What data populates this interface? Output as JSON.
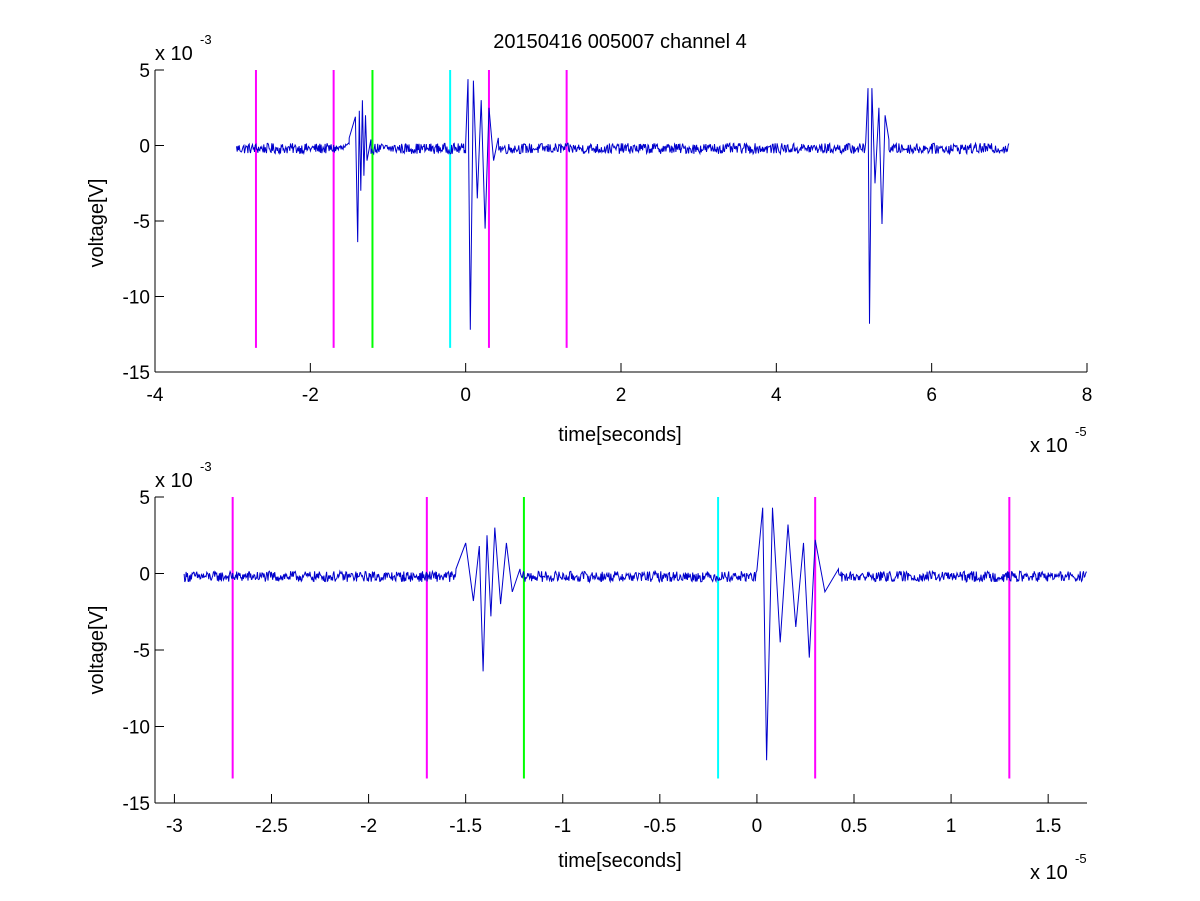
{
  "chart_data": [
    {
      "type": "line",
      "title": "20150416 005007 channel 4",
      "xlabel": "time[seconds]",
      "ylabel": "voltage[V]",
      "x_multiplier": "x 10",
      "x_exponent": "-5",
      "y_multiplier": "x 10",
      "y_exponent": "-3",
      "xlim": [
        -4,
        8
      ],
      "ylim": [
        -15,
        5
      ],
      "xticks": [
        -4,
        -2,
        0,
        2,
        4,
        6,
        8
      ],
      "xtick_labels": [
        "-4",
        "-2",
        "0",
        "2",
        "4",
        "6",
        "8"
      ],
      "yticks": [
        -15,
        -10,
        -5,
        0,
        5
      ],
      "ytick_labels": [
        "-15",
        "-10",
        "-5",
        "0",
        "5"
      ],
      "grid": false,
      "series": [
        {
          "color": "#0000cc",
          "x_range": [
            -2.95,
            7.0
          ],
          "baseline": -0.2,
          "noise_amplitude": 0.35,
          "bursts": [
            {
              "x": [
                -1.5,
                -1.42,
                -1.39,
                -1.37,
                -1.35,
                -1.33,
                -1.31,
                -1.29,
                -1.27,
                -1.22
              ],
              "y": [
                0.5,
                1.9,
                -6.4,
                2.3,
                -3.0,
                3.0,
                -2.0,
                2.0,
                -1.0,
                0.4
              ]
            },
            {
              "x": [
                0.0,
                0.03,
                0.06,
                0.1,
                0.15,
                0.2,
                0.25,
                0.3,
                0.36,
                0.42
              ],
              "y": [
                0.2,
                4.4,
                -12.2,
                4.3,
                -3.5,
                3.0,
                -5.5,
                2.5,
                -1.0,
                0.5
              ]
            },
            {
              "x": [
                5.15,
                5.18,
                5.2,
                5.23,
                5.27,
                5.32,
                5.36,
                5.4,
                5.45
              ],
              "y": [
                0.2,
                3.8,
                -11.8,
                3.8,
                -2.5,
                2.5,
                -5.2,
                2.0,
                0.4
              ]
            }
          ]
        }
      ],
      "vertical_markers": [
        {
          "x": -2.7,
          "color": "#ff00ff",
          "y_range": [
            -13.4,
            5
          ]
        },
        {
          "x": -1.7,
          "color": "#ff00ff",
          "y_range": [
            -13.4,
            5
          ]
        },
        {
          "x": -1.2,
          "color": "#00ff00",
          "y_range": [
            -13.4,
            5
          ]
        },
        {
          "x": -0.2,
          "color": "#00ffff",
          "y_range": [
            -13.4,
            5
          ]
        },
        {
          "x": 0.3,
          "color": "#ff00ff",
          "y_range": [
            -13.4,
            5
          ]
        },
        {
          "x": 1.3,
          "color": "#ff00ff",
          "y_range": [
            -13.4,
            5
          ]
        }
      ]
    },
    {
      "type": "line",
      "title": "",
      "xlabel": "time[seconds]",
      "ylabel": "voltage[V]",
      "x_multiplier": "x 10",
      "x_exponent": "-5",
      "y_multiplier": "x 10",
      "y_exponent": "-3",
      "xlim": [
        -3.1,
        1.7
      ],
      "ylim": [
        -15,
        5
      ],
      "xticks": [
        -3,
        -2.5,
        -2,
        -1.5,
        -1,
        -0.5,
        0,
        0.5,
        1,
        1.5
      ],
      "xtick_labels": [
        "-3",
        "-2.5",
        "-2",
        "-1.5",
        "-1",
        "-0.5",
        "0",
        "0.5",
        "1",
        "1.5"
      ],
      "yticks": [
        -15,
        -10,
        -5,
        0,
        5
      ],
      "ytick_labels": [
        "-15",
        "-10",
        "-5",
        "0",
        "5"
      ],
      "grid": false,
      "series": [
        {
          "color": "#0000cc",
          "x_range": [
            -2.95,
            1.7
          ],
          "baseline": -0.2,
          "noise_amplitude": 0.35,
          "bursts": [
            {
              "x": [
                -1.55,
                -1.5,
                -1.46,
                -1.43,
                -1.41,
                -1.39,
                -1.37,
                -1.35,
                -1.32,
                -1.29,
                -1.26,
                -1.22
              ],
              "y": [
                0.3,
                2.0,
                -1.8,
                1.8,
                -6.4,
                2.5,
                -2.8,
                3.0,
                -2.0,
                2.0,
                -1.2,
                0.3
              ]
            },
            {
              "x": [
                0.0,
                0.03,
                0.05,
                0.08,
                0.12,
                0.16,
                0.2,
                0.24,
                0.27,
                0.3,
                0.35,
                0.42
              ],
              "y": [
                0.2,
                4.3,
                -12.2,
                4.3,
                -4.5,
                3.2,
                -3.5,
                2.0,
                -5.5,
                2.2,
                -1.2,
                0.3
              ]
            }
          ]
        }
      ],
      "vertical_markers": [
        {
          "x": -2.7,
          "color": "#ff00ff",
          "y_range": [
            -13.4,
            5
          ]
        },
        {
          "x": -1.7,
          "color": "#ff00ff",
          "y_range": [
            -13.4,
            5
          ]
        },
        {
          "x": -1.2,
          "color": "#00ff00",
          "y_range": [
            -13.4,
            5
          ]
        },
        {
          "x": -0.2,
          "color": "#00ffff",
          "y_range": [
            -13.4,
            5
          ]
        },
        {
          "x": 0.3,
          "color": "#ff00ff",
          "y_range": [
            -13.4,
            5
          ]
        },
        {
          "x": 1.3,
          "color": "#ff00ff",
          "y_range": [
            -13.4,
            5
          ]
        }
      ]
    }
  ]
}
